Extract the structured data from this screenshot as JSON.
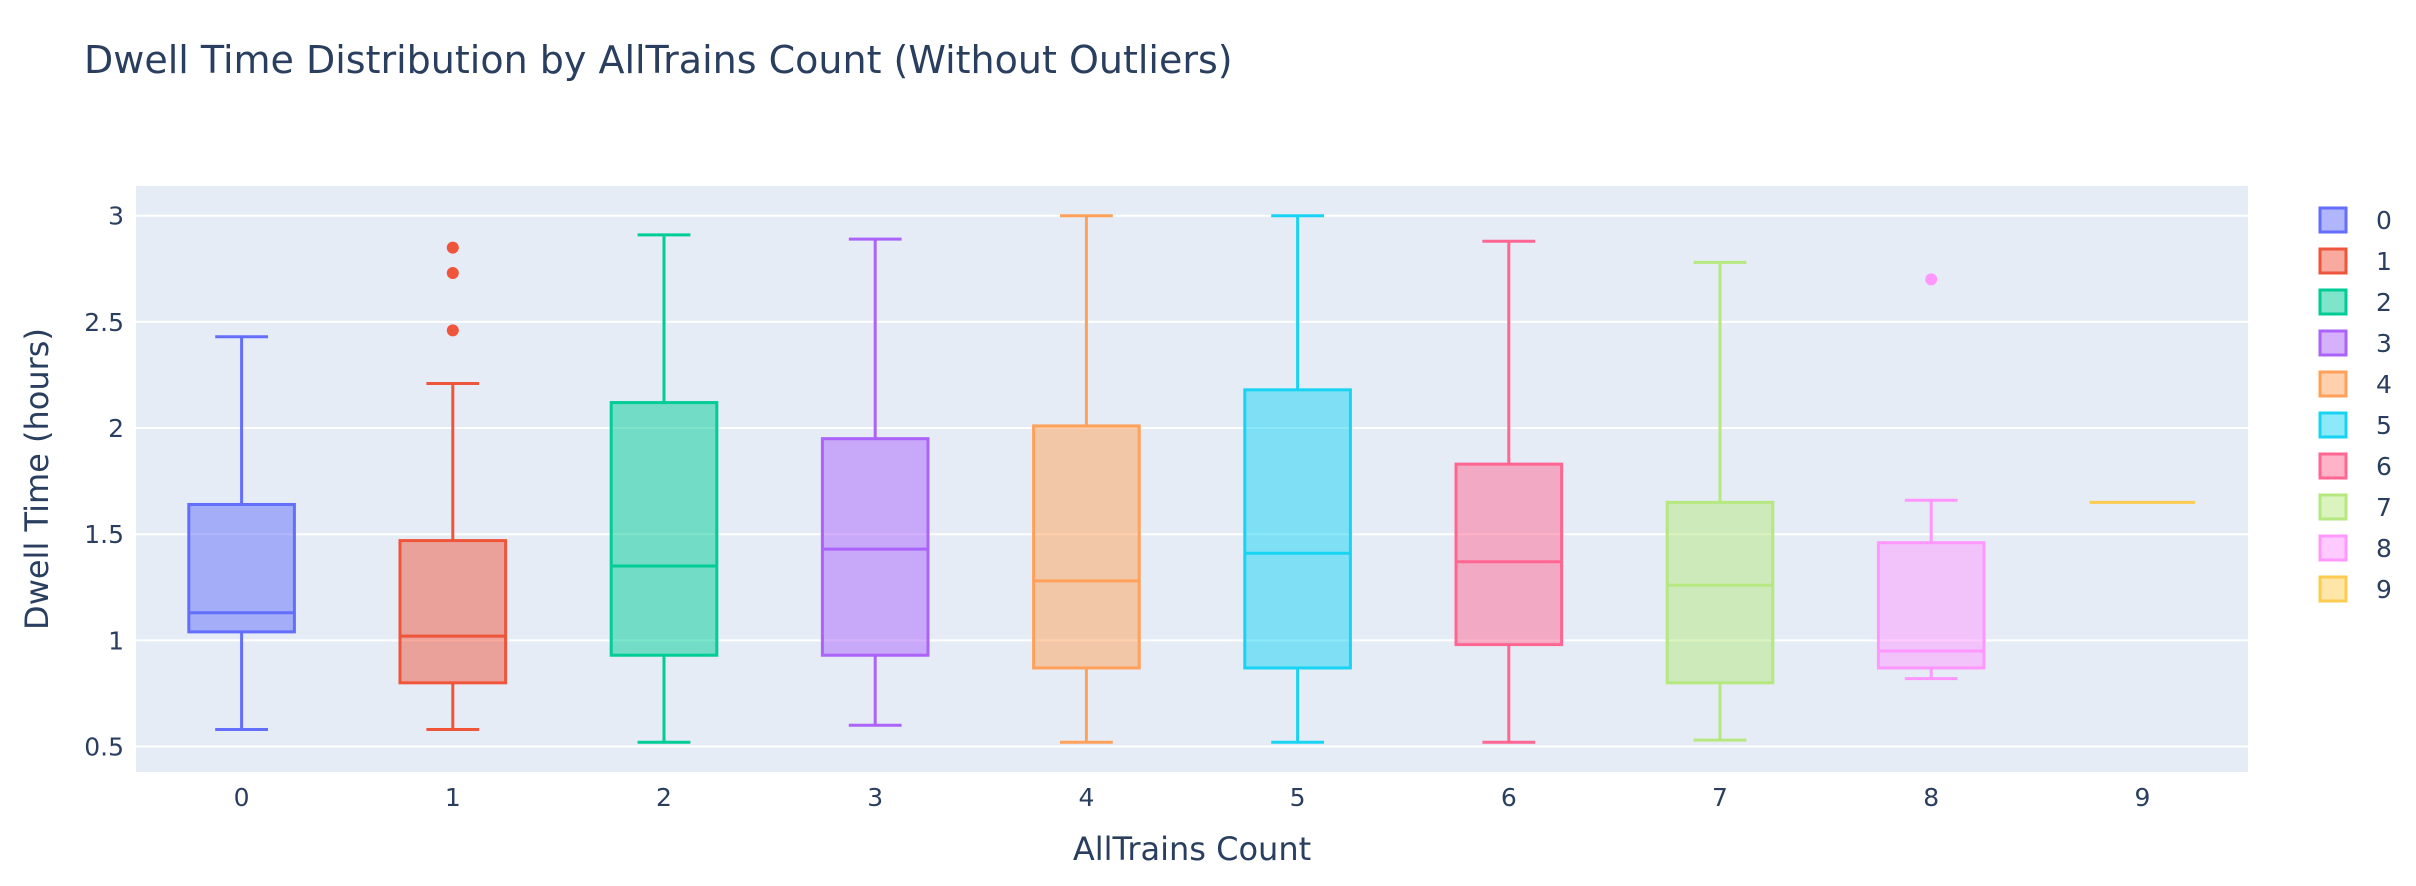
{
  "chart_data": {
    "type": "box",
    "title": "Dwell Time Distribution by AllTrains Count (Without Outliers)",
    "xlabel": "AllTrains Count",
    "ylabel": "Dwell Time (hours)",
    "ylim": [
      0.38,
      3.14
    ],
    "yticks": [
      0.5,
      1,
      1.5,
      2,
      2.5,
      3
    ],
    "ytick_labels": [
      "0.5",
      "1",
      "1.5",
      "2",
      "2.5",
      "3"
    ],
    "grid": true,
    "legend_position": "right",
    "categories": [
      "0",
      "1",
      "2",
      "3",
      "4",
      "5",
      "6",
      "7",
      "8",
      "9"
    ],
    "series": [
      {
        "name": "0",
        "color": "#636efa",
        "min": 0.58,
        "q1": 1.04,
        "median": 1.13,
        "q3": 1.64,
        "max": 2.43,
        "outliers": []
      },
      {
        "name": "1",
        "color": "#EF553B",
        "min": 0.58,
        "q1": 0.8,
        "median": 1.02,
        "q3": 1.47,
        "max": 2.21,
        "outliers": [
          2.46,
          2.73,
          2.85
        ]
      },
      {
        "name": "2",
        "color": "#00cc96",
        "min": 0.52,
        "q1": 0.93,
        "median": 1.35,
        "q3": 2.12,
        "max": 2.91,
        "outliers": []
      },
      {
        "name": "3",
        "color": "#ab63fa",
        "min": 0.6,
        "q1": 0.93,
        "median": 1.43,
        "q3": 1.95,
        "max": 2.89,
        "outliers": []
      },
      {
        "name": "4",
        "color": "#FFA15A",
        "min": 0.52,
        "q1": 0.87,
        "median": 1.28,
        "q3": 2.01,
        "max": 3.0,
        "outliers": []
      },
      {
        "name": "5",
        "color": "#19d3f3",
        "min": 0.52,
        "q1": 0.87,
        "median": 1.41,
        "q3": 2.18,
        "max": 3.0,
        "outliers": []
      },
      {
        "name": "6",
        "color": "#FF6692",
        "min": 0.52,
        "q1": 0.98,
        "median": 1.37,
        "q3": 1.83,
        "max": 2.88,
        "outliers": []
      },
      {
        "name": "7",
        "color": "#B6E880",
        "min": 0.53,
        "q1": 0.8,
        "median": 1.26,
        "q3": 1.65,
        "max": 2.78,
        "outliers": []
      },
      {
        "name": "8",
        "color": "#FF97FF",
        "min": 0.82,
        "q1": 0.87,
        "median": 0.95,
        "q3": 1.46,
        "max": 1.66,
        "outliers": [
          2.7
        ]
      },
      {
        "name": "9",
        "color": "#FECB52",
        "min": 1.65,
        "q1": 1.65,
        "median": 1.65,
        "q3": 1.65,
        "max": 1.65,
        "outliers": []
      }
    ]
  }
}
